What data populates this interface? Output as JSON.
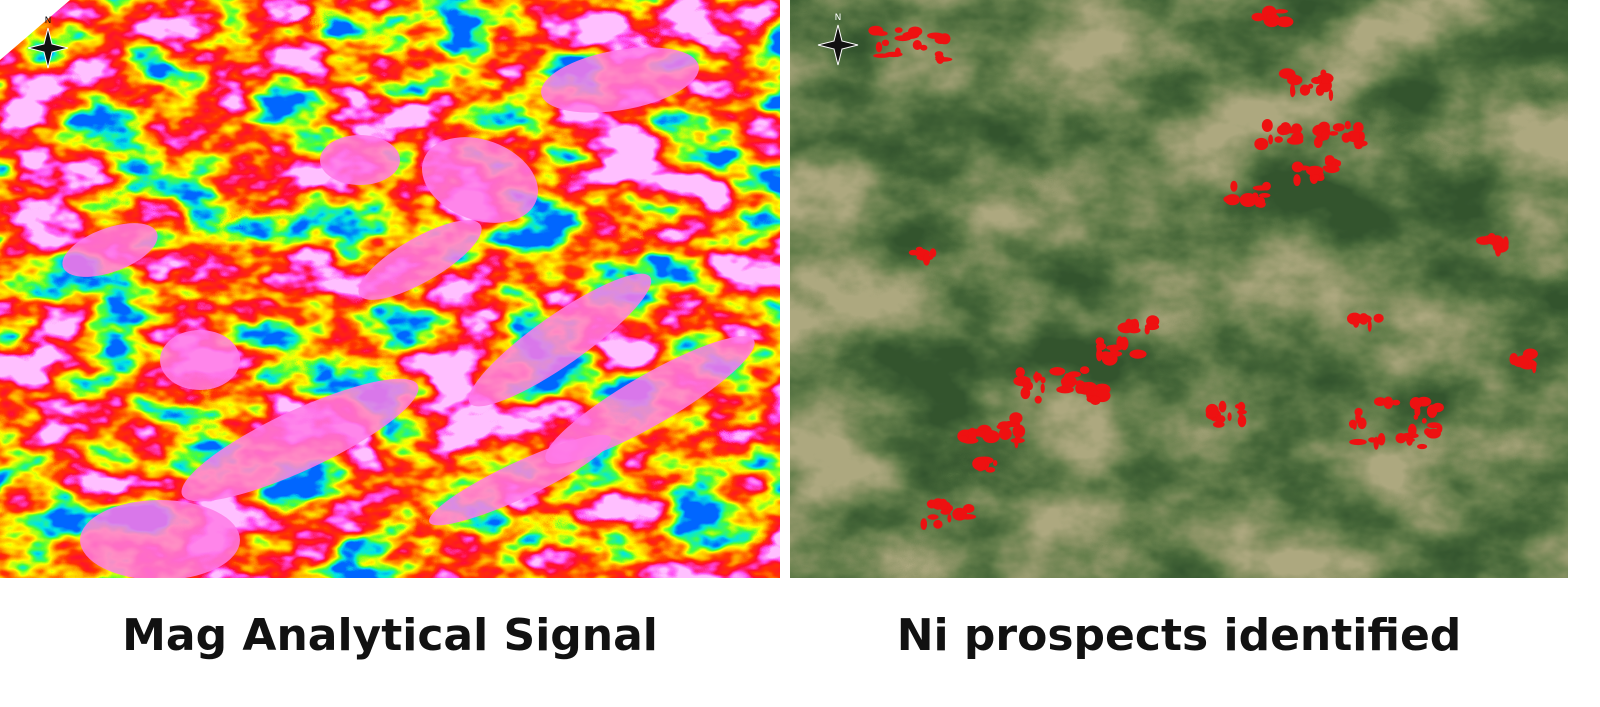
{
  "panels": [
    {
      "caption": "Mag Analytical Signal",
      "north": "N"
    },
    {
      "caption": "Ni prospects identified",
      "north": "N"
    }
  ]
}
